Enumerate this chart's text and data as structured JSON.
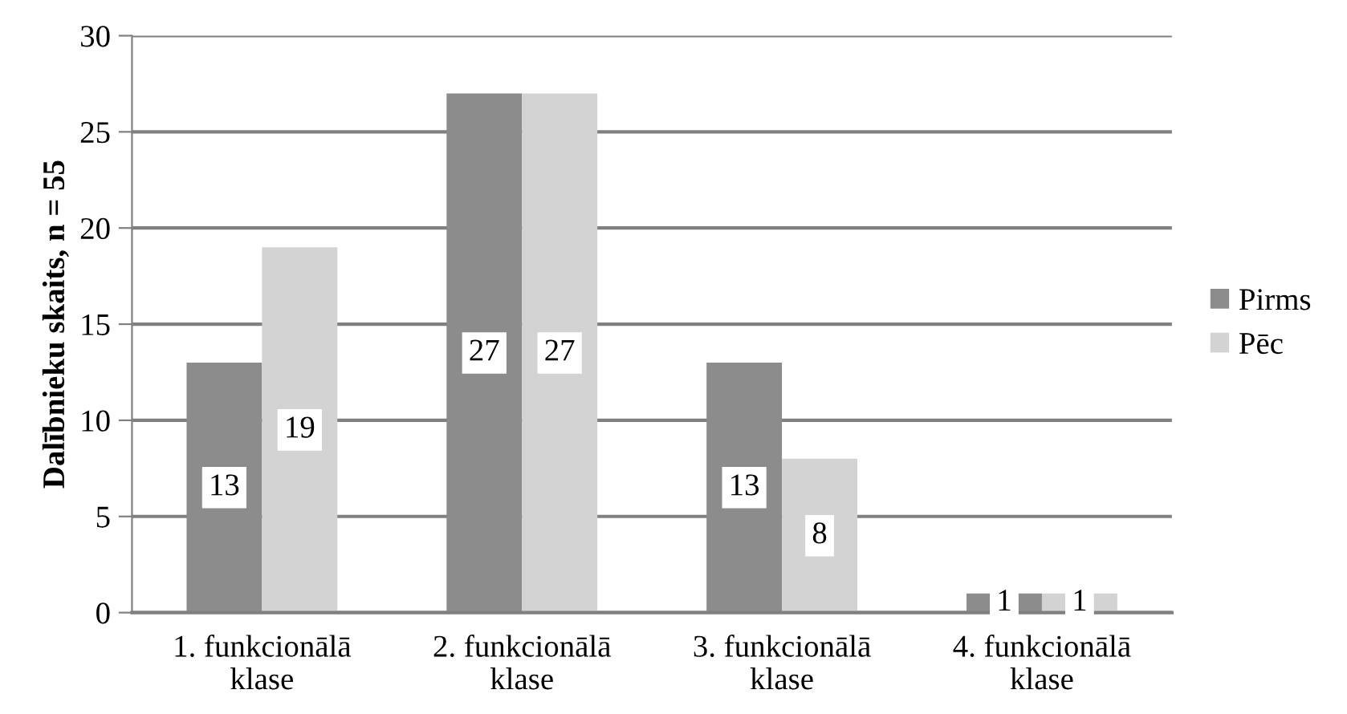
{
  "chart_data": {
    "type": "bar",
    "ylabel": "Dalībnieku skaits, n = 55",
    "categories": [
      "1. funkcionālā\nklase",
      "2. funkcionālā\nklase",
      "3. funkcionālā\nklase",
      "4. funkcionālā\nklase"
    ],
    "series": [
      {
        "name": "Pirms",
        "color": "#8c8c8c",
        "values": [
          13,
          27,
          13,
          1
        ]
      },
      {
        "name": "Pēc",
        "color": "#d3d3d3",
        "values": [
          19,
          27,
          8,
          1
        ]
      }
    ],
    "ylim": [
      0,
      30
    ],
    "yticks": [
      0,
      5,
      10,
      15,
      20,
      25,
      30
    ],
    "grid": "y",
    "legend": "right",
    "data_labels": true
  }
}
